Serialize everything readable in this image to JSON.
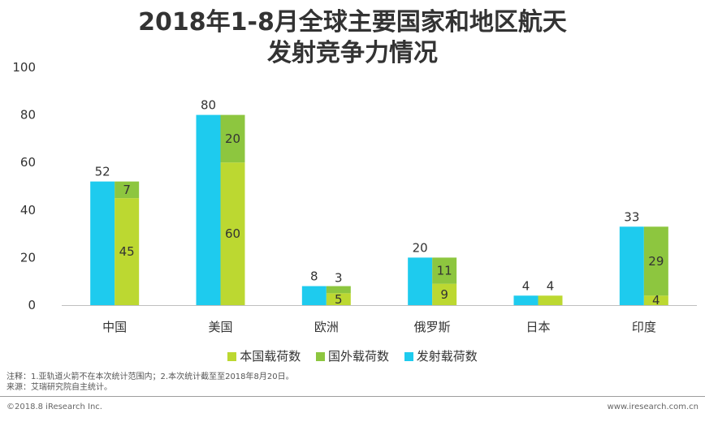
{
  "title_line1": "2018年1-8月全球主要国家和地区航天",
  "title_line2": "发射竞争力情况",
  "chart_data": {
    "type": "bar",
    "categories": [
      "中国",
      "美国",
      "欧洲",
      "俄罗斯",
      "日本",
      "印度"
    ],
    "series": [
      {
        "name": "发射载荷数",
        "color": "#1ecbee",
        "values": [
          52,
          80,
          8,
          20,
          4,
          33
        ]
      },
      {
        "name": "本国载荷数",
        "color": "#bcd831",
        "values": [
          45,
          60,
          5,
          9,
          4,
          4
        ]
      },
      {
        "name": "国外载荷数",
        "color": "#8dc63f",
        "values": [
          7,
          20,
          3,
          11,
          0,
          29
        ]
      }
    ],
    "stack_labels": [
      52,
      80,
      8,
      20,
      4,
      33
    ],
    "ylim": [
      0,
      100
    ],
    "yticks": [
      "0",
      "20",
      "40",
      "60",
      "80",
      "100"
    ],
    "legend_position": "bottom"
  },
  "legend": [
    {
      "label": "本国载荷数",
      "color": "#bcd831"
    },
    {
      "label": "国外载荷数",
      "color": "#8dc63f"
    },
    {
      "label": "发射载荷数",
      "color": "#1ecbee"
    }
  ],
  "notes": {
    "line1": "注释：1.亚轨道火箭不在本次统计范围内；2.本次统计截至至2018年8月20日。",
    "line2": "来源：艾瑞研究院自主统计。"
  },
  "footer": {
    "left": "©2018.8 iResearch Inc.",
    "right": "www.iresearch.com.cn"
  }
}
